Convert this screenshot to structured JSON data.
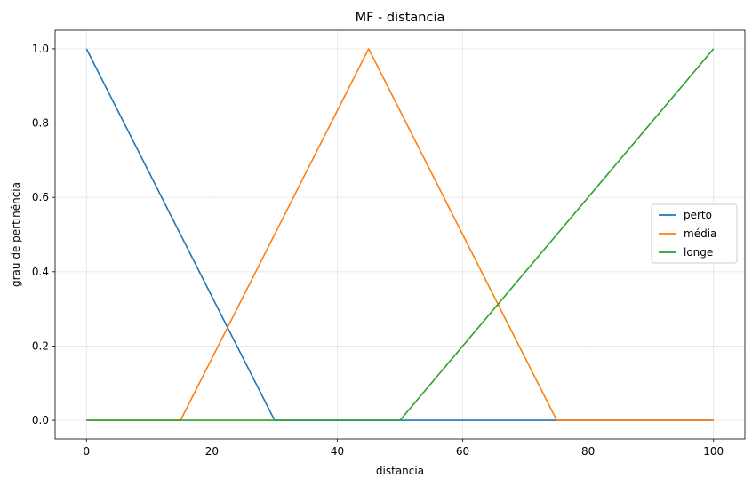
{
  "chart_data": {
    "type": "line",
    "title": "MF - distancia",
    "xlabel": "distancia",
    "ylabel": "grau de pertinência",
    "xlim": [
      -5,
      105
    ],
    "ylim": [
      -0.05,
      1.05
    ],
    "xticks": [
      0,
      20,
      40,
      60,
      80,
      100
    ],
    "yticks": [
      0.0,
      0.2,
      0.4,
      0.6,
      0.8,
      1.0
    ],
    "xtick_labels": [
      "0",
      "20",
      "40",
      "60",
      "80",
      "100"
    ],
    "ytick_labels": [
      "0.0",
      "0.2",
      "0.4",
      "0.6",
      "0.8",
      "1.0"
    ],
    "grid": true,
    "legend_position": "center-right",
    "series": [
      {
        "name": "perto",
        "color": "#1f77b4",
        "x": [
          0,
          30,
          100
        ],
        "y": [
          1.0,
          0.0,
          0.0
        ]
      },
      {
        "name": "média",
        "color": "#ff7f0e",
        "x": [
          0,
          15,
          45,
          75,
          100
        ],
        "y": [
          0.0,
          0.0,
          1.0,
          0.0,
          0.0
        ]
      },
      {
        "name": "longe",
        "color": "#2ca02c",
        "x": [
          0,
          50,
          100
        ],
        "y": [
          0.0,
          0.0,
          1.0
        ]
      }
    ]
  }
}
